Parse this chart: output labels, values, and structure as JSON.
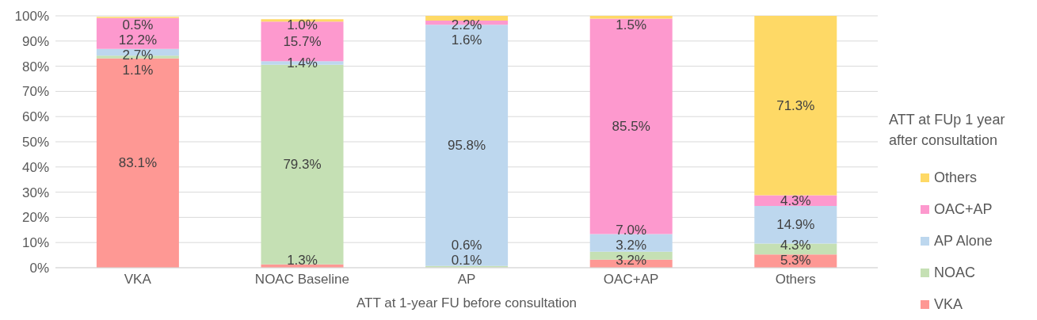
{
  "chart_data": {
    "type": "bar",
    "stacked": true,
    "xlabel": "ATT at 1-year  FU before consultation",
    "legend_title": "ATT at FUp 1 year after consultation",
    "categories": [
      "VKA",
      "NOAC Baseline",
      "AP",
      "OAC+AP",
      "Others"
    ],
    "series": [
      {
        "name": "VKA",
        "color": "#fe9894",
        "values": [
          83.1,
          1.3,
          0.1,
          3.2,
          5.3
        ],
        "value_labels": [
          "83.1%",
          "1.3%",
          "0.1%",
          "3.2%",
          "5.3%"
        ]
      },
      {
        "name": "NOAC",
        "color": "#c5e0b4",
        "values": [
          1.1,
          79.3,
          0.6,
          3.2,
          4.3
        ],
        "value_labels": [
          "1.1%",
          "79.3%",
          "0.6%",
          "3.2%",
          "4.3%"
        ]
      },
      {
        "name": "AP Alone",
        "color": "#bdd7ee",
        "values": [
          2.7,
          1.4,
          95.8,
          7.0,
          14.9
        ],
        "value_labels": [
          "2.7%",
          "1.4%",
          "95.8%",
          "7.0%",
          "14.9%"
        ]
      },
      {
        "name": "OAC+AP",
        "color": "#fd99ce",
        "values": [
          12.2,
          15.7,
          1.6,
          85.5,
          4.3
        ],
        "value_labels": [
          "12.2%",
          "15.7%",
          "1.6%",
          "85.5%",
          "4.3%"
        ]
      },
      {
        "name": "Others",
        "color": "#fed966",
        "values": [
          0.5,
          1.0,
          2.2,
          1.5,
          71.3
        ],
        "value_labels": [
          "0.5%",
          "1.0%",
          "2.2%",
          "1.5%",
          "71.3%"
        ]
      }
    ],
    "ylim": [
      0,
      100
    ],
    "yticks": [
      {
        "value": 0,
        "label": "0%"
      },
      {
        "value": 10,
        "label": "10%"
      },
      {
        "value": 20,
        "label": "20%"
      },
      {
        "value": 30,
        "label": "30%"
      },
      {
        "value": 40,
        "label": "40%"
      },
      {
        "value": 50,
        "label": "50%"
      },
      {
        "value": 60,
        "label": "60%"
      },
      {
        "value": 70,
        "label": "70%"
      },
      {
        "value": 80,
        "label": "80%"
      },
      {
        "value": 90,
        "label": "90%"
      },
      {
        "value": 100,
        "label": "100%"
      }
    ],
    "grid": "y",
    "legend": "right"
  }
}
